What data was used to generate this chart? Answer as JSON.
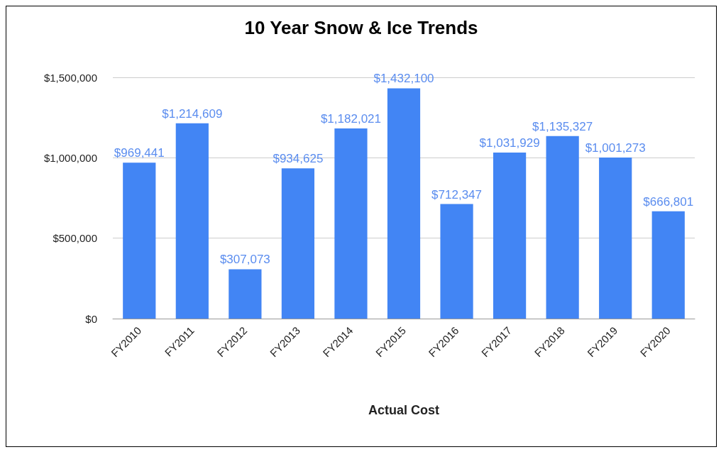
{
  "chart_data": {
    "type": "bar",
    "title": "10 Year Snow & Ice Trends",
    "xlabel": "Actual Cost",
    "categories": [
      "FY2010",
      "FY2011",
      "FY2012",
      "FY2013",
      "FY2014",
      "FY2015",
      "FY2016",
      "FY2017",
      "FY2018",
      "FY2019",
      "FY2020"
    ],
    "values": [
      969441,
      1214609,
      307073,
      934625,
      1182021,
      1432100,
      712347,
      1031929,
      1135327,
      1001273,
      666801
    ],
    "value_labels": [
      "$969,441",
      "$1,214,609",
      "$307,073",
      "$934,625",
      "$1,182,021",
      "$1,432,100",
      "$712,347",
      "$1,031,929",
      "$1,135,327",
      "$1,001,273",
      "$666,801"
    ],
    "color": "#4285f4",
    "ylim": [
      0,
      1500000
    ],
    "yticks": [
      {
        "value": 0,
        "label": "$0"
      },
      {
        "value": 500000,
        "label": "$500,000"
      },
      {
        "value": 1000000,
        "label": "$1,000,000"
      },
      {
        "value": 1500000,
        "label": "$1,500,000"
      }
    ],
    "grid": "y"
  }
}
